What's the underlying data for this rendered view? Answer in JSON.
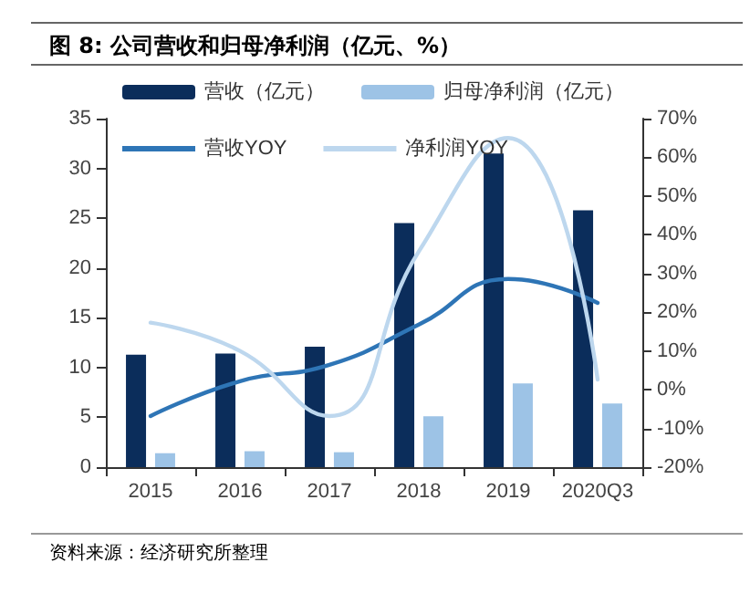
{
  "chart_data": {
    "type": "bar",
    "title": "图 8: 公司营收和归母净利润（亿元、%）",
    "categories": [
      "2015",
      "2016",
      "2017",
      "2018",
      "2019",
      "2020Q3"
    ],
    "series": [
      {
        "name": "营收（亿元）",
        "color": "#0b2d5b",
        "values": [
          11.3,
          11.4,
          12.1,
          24.5,
          31.5,
          25.8
        ]
      },
      {
        "name": "归母净利润（亿元）",
        "color": "#9dc3e6",
        "values": [
          1.4,
          1.6,
          1.5,
          5.1,
          8.4,
          6.4
        ]
      },
      {
        "name": "营收YOY",
        "type": "line",
        "axis": "y2",
        "color": "#2e75b6",
        "values": [
          -6.8,
          2.2,
          6.4,
          16.8,
          28.6,
          22.4
        ]
      },
      {
        "name": "净利润YOY",
        "type": "line",
        "axis": "y2",
        "color": "#bdd7ee",
        "values": [
          17.3,
          10,
          -6.8,
          35.7,
          65,
          2.6
        ]
      }
    ],
    "ylim": [
      0,
      35
    ],
    "yticks": [
      0,
      5,
      10,
      15,
      20,
      25,
      30,
      35
    ],
    "y2lim": [
      -20,
      70
    ],
    "y2ticks": [
      {
        "value": -20,
        "label": "-20%"
      },
      {
        "value": -10,
        "label": "-10%"
      },
      {
        "value": 0,
        "label": "0%"
      },
      {
        "value": 10,
        "label": "10%"
      },
      {
        "value": 20,
        "label": "20%"
      },
      {
        "value": 30,
        "label": "30%"
      },
      {
        "value": 40,
        "label": "40%"
      },
      {
        "value": 50,
        "label": "50%"
      },
      {
        "value": 60,
        "label": "60%"
      },
      {
        "value": 70,
        "label": "70%"
      }
    ],
    "grid": false,
    "legend": "top",
    "marker": "none",
    "annotations": [
      "资料来源：经济研究所整理"
    ]
  }
}
